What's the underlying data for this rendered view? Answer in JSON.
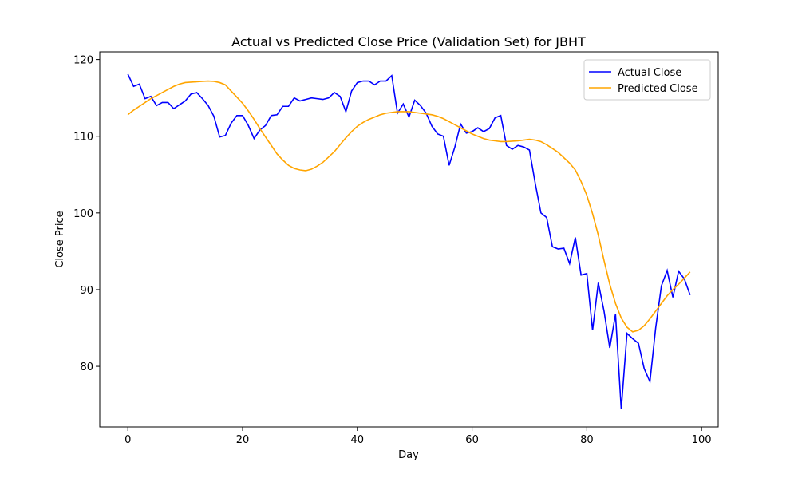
{
  "chart_data": {
    "type": "line",
    "title": "Actual vs Predicted Close Price (Validation Set) for JBHT",
    "x_label": "Day",
    "y_label": "Close Price",
    "x": [
      0,
      1,
      2,
      3,
      4,
      5,
      6,
      7,
      8,
      9,
      10,
      11,
      12,
      13,
      14,
      15,
      16,
      17,
      18,
      19,
      20,
      21,
      22,
      23,
      24,
      25,
      26,
      27,
      28,
      29,
      30,
      31,
      32,
      33,
      34,
      35,
      36,
      37,
      38,
      39,
      40,
      41,
      42,
      43,
      44,
      45,
      46,
      47,
      48,
      49,
      50,
      51,
      52,
      53,
      54,
      55,
      56,
      57,
      58,
      59,
      60,
      61,
      62,
      63,
      64,
      65,
      66,
      67,
      68,
      69,
      70,
      71,
      72,
      73,
      74,
      75,
      76,
      77,
      78,
      79,
      80,
      81,
      82,
      83,
      84,
      85,
      86,
      87,
      88,
      89,
      90,
      91,
      92,
      93,
      94,
      95,
      96,
      97,
      98
    ],
    "series": [
      {
        "name": "Actual Close",
        "color": "#0000ff",
        "values": [
          118.1,
          116.5,
          116.8,
          114.9,
          115.2,
          114.0,
          114.4,
          114.4,
          113.6,
          114.1,
          114.6,
          115.5,
          115.7,
          114.9,
          114.0,
          112.6,
          109.9,
          110.1,
          111.7,
          112.7,
          112.7,
          111.4,
          109.7,
          110.8,
          111.4,
          112.7,
          112.8,
          113.9,
          113.9,
          115.0,
          114.6,
          114.8,
          115.0,
          114.9,
          114.8,
          115.0,
          115.7,
          115.2,
          113.2,
          115.9,
          117.0,
          117.2,
          117.2,
          116.7,
          117.2,
          117.2,
          117.9,
          113.0,
          114.2,
          112.5,
          114.7,
          114.0,
          113.0,
          111.3,
          110.3,
          110.0,
          106.2,
          108.6,
          111.6,
          110.4,
          110.6,
          111.1,
          110.6,
          111.0,
          112.4,
          112.7,
          108.8,
          108.3,
          108.8,
          108.6,
          108.2,
          103.9,
          100.0,
          99.4,
          95.6,
          95.3,
          95.4,
          93.4,
          96.8,
          91.9,
          92.1,
          84.7,
          90.9,
          87.2,
          82.4,
          86.8,
          74.4,
          84.3,
          83.6,
          83.0,
          79.7,
          78.0,
          85.0,
          90.5,
          92.5,
          89.0,
          92.4,
          91.4,
          89.3
        ]
      },
      {
        "name": "Predicted Close",
        "color": "#ffa500",
        "values": [
          112.8,
          113.4,
          113.9,
          114.4,
          114.9,
          115.3,
          115.7,
          116.1,
          116.5,
          116.8,
          117.0,
          117.05,
          117.1,
          117.15,
          117.2,
          117.15,
          117.0,
          116.7,
          115.9,
          115.1,
          114.3,
          113.3,
          112.2,
          111.0,
          109.9,
          108.8,
          107.7,
          106.9,
          106.2,
          105.8,
          105.6,
          105.5,
          105.7,
          106.1,
          106.6,
          107.3,
          108.0,
          108.9,
          109.8,
          110.6,
          111.3,
          111.8,
          112.2,
          112.5,
          112.8,
          113.0,
          113.1,
          113.2,
          113.2,
          113.2,
          113.1,
          113.0,
          112.9,
          112.8,
          112.6,
          112.3,
          111.9,
          111.5,
          111.1,
          110.7,
          110.3,
          110.0,
          109.7,
          109.5,
          109.4,
          109.3,
          109.3,
          109.35,
          109.4,
          109.5,
          109.6,
          109.5,
          109.3,
          108.9,
          108.4,
          107.9,
          107.2,
          106.5,
          105.6,
          104.1,
          102.3,
          99.9,
          97.1,
          93.8,
          90.7,
          88.2,
          86.3,
          85.1,
          84.5,
          84.7,
          85.3,
          86.2,
          87.2,
          88.2,
          89.2,
          90.0,
          90.7,
          91.5,
          92.3
        ]
      }
    ],
    "xlim": [
      -4.9,
      102.9
    ],
    "xticks": [
      0,
      20,
      40,
      60,
      80,
      100
    ],
    "ylim": [
      72.1,
      121.0
    ],
    "yticks": [
      80,
      90,
      100,
      110,
      120
    ],
    "legend": "upper right",
    "grid": false
  }
}
